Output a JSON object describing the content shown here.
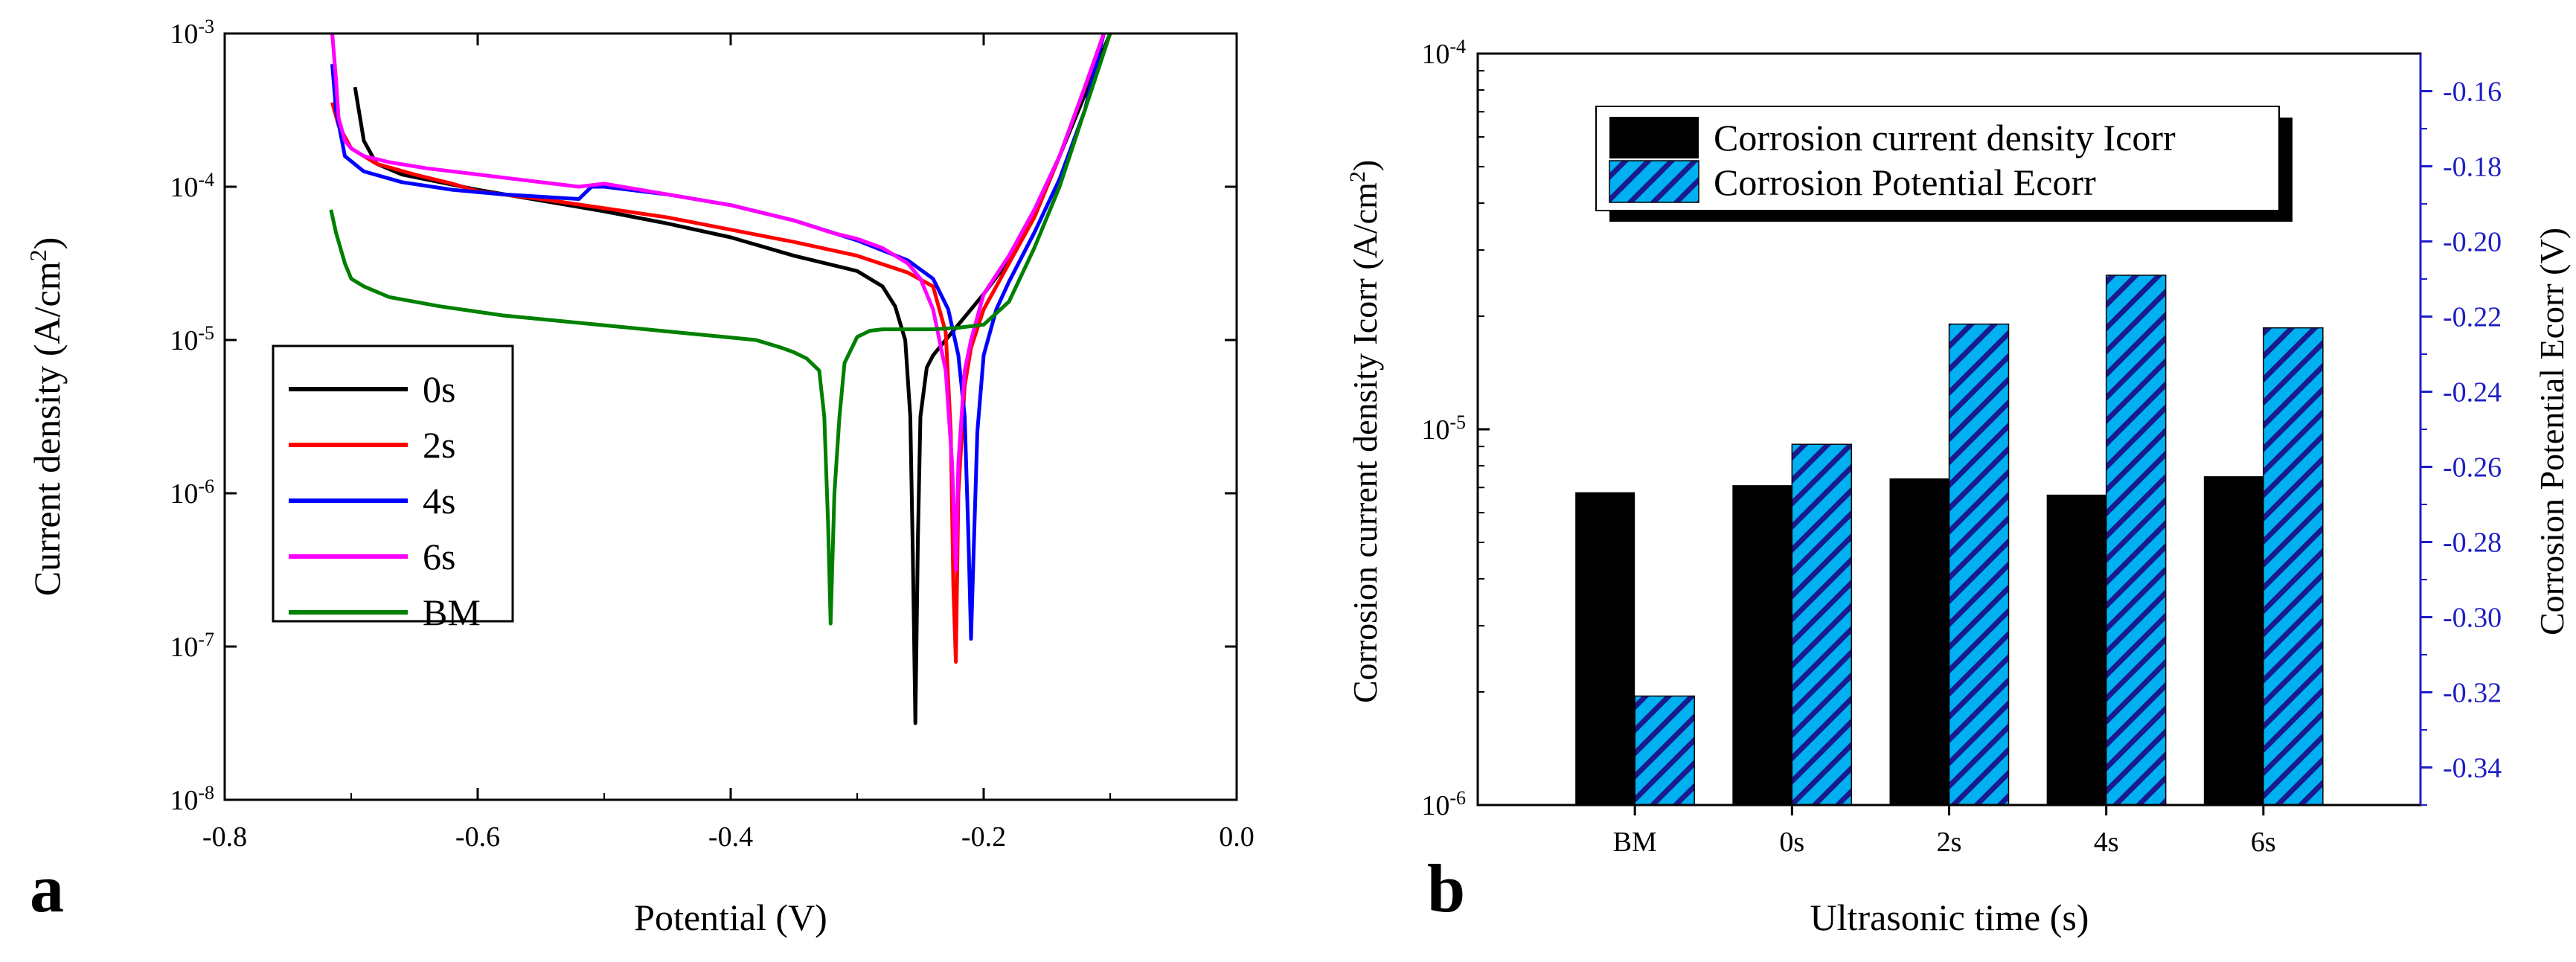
{
  "chart_data": [
    {
      "panel_label": "a",
      "type": "line",
      "xlabel": "Potential (V)",
      "ylabel": "Current density (A/cm",
      "ylabel_sup": "2",
      "ylabel_close": ")",
      "xlim": [
        -0.8,
        0.0
      ],
      "ylim_log10": [
        -8,
        -3
      ],
      "x_ticks": [
        -0.8,
        -0.6,
        -0.4,
        -0.2,
        0.0
      ],
      "x_tick_labels": [
        "-0.8",
        "-0.6",
        "-0.4",
        "-0.2",
        "0.0"
      ],
      "y_tick_exps": [
        "-8",
        "-7",
        "-6",
        "-5",
        "-4",
        "-3"
      ],
      "legend_location": "lower-left",
      "series": [
        {
          "name": "0s",
          "color": "#000000",
          "x": [
            -0.697,
            -0.69,
            -0.68,
            -0.66,
            -0.63,
            -0.6,
            -0.55,
            -0.5,
            -0.45,
            -0.4,
            -0.35,
            -0.3,
            -0.28,
            -0.27,
            -0.262,
            -0.258,
            -0.256,
            -0.254,
            -0.252,
            -0.25,
            -0.245,
            -0.24,
            -0.23,
            -0.22,
            -0.2,
            -0.18,
            -0.16,
            -0.14,
            -0.12,
            -0.1
          ],
          "log_y": [
            -3.35,
            -3.7,
            -3.85,
            -3.92,
            -3.97,
            -4.02,
            -4.09,
            -4.16,
            -4.24,
            -4.33,
            -4.45,
            -4.55,
            -4.65,
            -4.78,
            -5.0,
            -5.5,
            -6.4,
            -7.5,
            -6.3,
            -5.5,
            -5.18,
            -5.1,
            -5.0,
            -4.9,
            -4.7,
            -4.48,
            -4.2,
            -3.8,
            -3.4,
            -3.0
          ]
        },
        {
          "name": "2s",
          "color": "#ff0000",
          "x": [
            -0.715,
            -0.71,
            -0.7,
            -0.68,
            -0.65,
            -0.62,
            -0.6,
            -0.55,
            -0.5,
            -0.45,
            -0.4,
            -0.35,
            -0.3,
            -0.26,
            -0.24,
            -0.23,
            -0.226,
            -0.224,
            -0.222,
            -0.22,
            -0.215,
            -0.21,
            -0.2,
            -0.18,
            -0.16,
            -0.14,
            -0.12,
            -0.105
          ],
          "log_y": [
            -3.45,
            -3.6,
            -3.75,
            -3.85,
            -3.92,
            -3.98,
            -4.03,
            -4.08,
            -4.14,
            -4.2,
            -4.28,
            -4.36,
            -4.45,
            -4.56,
            -4.65,
            -4.95,
            -5.6,
            -6.6,
            -7.1,
            -6.0,
            -5.3,
            -5.05,
            -4.8,
            -4.5,
            -4.2,
            -3.8,
            -3.35,
            -3.0
          ]
        },
        {
          "name": "4s",
          "color": "#0000ff",
          "x": [
            -0.715,
            -0.712,
            -0.705,
            -0.69,
            -0.66,
            -0.62,
            -0.58,
            -0.52,
            -0.51,
            -0.5,
            -0.45,
            -0.4,
            -0.35,
            -0.3,
            -0.26,
            -0.24,
            -0.228,
            -0.22,
            -0.215,
            -0.212,
            -0.21,
            -0.208,
            -0.205,
            -0.2,
            -0.19,
            -0.18,
            -0.16,
            -0.14,
            -0.12,
            -0.105
          ],
          "log_y": [
            -3.2,
            -3.5,
            -3.8,
            -3.9,
            -3.97,
            -4.02,
            -4.05,
            -4.08,
            -4.0,
            -4.0,
            -4.05,
            -4.12,
            -4.22,
            -4.35,
            -4.48,
            -4.6,
            -4.8,
            -5.1,
            -5.5,
            -6.3,
            -6.95,
            -6.4,
            -5.6,
            -5.1,
            -4.8,
            -4.62,
            -4.3,
            -3.95,
            -3.5,
            -3.0
          ]
        },
        {
          "name": "6s",
          "color": "#ff00ff",
          "x": [
            -0.715,
            -0.712,
            -0.71,
            -0.705,
            -0.7,
            -0.69,
            -0.67,
            -0.64,
            -0.6,
            -0.56,
            -0.52,
            -0.5,
            -0.45,
            -0.4,
            -0.35,
            -0.32,
            -0.3,
            -0.28,
            -0.26,
            -0.25,
            -0.24,
            -0.235,
            -0.23,
            -0.225,
            -0.222,
            -0.22,
            -0.215,
            -0.21,
            -0.2,
            -0.18,
            -0.16,
            -0.14,
            -0.12,
            -0.105
          ],
          "log_y": [
            -3.0,
            -3.3,
            -3.55,
            -3.7,
            -3.75,
            -3.8,
            -3.84,
            -3.88,
            -3.92,
            -3.96,
            -4.0,
            -3.98,
            -4.05,
            -4.12,
            -4.22,
            -4.3,
            -4.34,
            -4.4,
            -4.5,
            -4.6,
            -4.8,
            -5.0,
            -5.2,
            -5.8,
            -6.5,
            -5.8,
            -5.2,
            -5.0,
            -4.7,
            -4.45,
            -4.15,
            -3.8,
            -3.35,
            -3.0
          ]
        },
        {
          "name": "BM",
          "color": "#008000",
          "x": [
            -0.716,
            -0.712,
            -0.705,
            -0.7,
            -0.69,
            -0.67,
            -0.63,
            -0.58,
            -0.53,
            -0.48,
            -0.43,
            -0.38,
            -0.36,
            -0.35,
            -0.34,
            -0.33,
            -0.326,
            -0.323,
            -0.321,
            -0.318,
            -0.314,
            -0.31,
            -0.3,
            -0.29,
            -0.28,
            -0.26,
            -0.24,
            -0.22,
            -0.2,
            -0.18,
            -0.16,
            -0.14,
            -0.12,
            -0.1
          ],
          "log_y": [
            -4.15,
            -4.3,
            -4.5,
            -4.6,
            -4.65,
            -4.72,
            -4.78,
            -4.84,
            -4.88,
            -4.92,
            -4.96,
            -5.0,
            -5.05,
            -5.08,
            -5.12,
            -5.2,
            -5.5,
            -6.2,
            -6.85,
            -6.0,
            -5.5,
            -5.15,
            -4.98,
            -4.94,
            -4.93,
            -4.93,
            -4.93,
            -4.92,
            -4.9,
            -4.75,
            -4.4,
            -4.0,
            -3.5,
            -3.0
          ]
        }
      ]
    },
    {
      "panel_label": "b",
      "type": "bar",
      "xlabel": "Ultrasonic time (s)",
      "ylabel_left": "Corrosion current density Icorr (A/cm",
      "ylabel_left_sup": "2",
      "ylabel_left_close": ")",
      "ylabel_right": "Corrosion Potential Ecorr (V)",
      "categories": [
        "BM",
        "0s",
        "2s",
        "4s",
        "6s"
      ],
      "y_left_tick_exps": [
        "-6",
        "-5",
        "-4"
      ],
      "ylim_left_log10": [
        -6,
        -4
      ],
      "ylim_right": [
        -0.35,
        -0.15
      ],
      "y_right_ticks": [
        "-0.16",
        "-0.18",
        "-0.20",
        "-0.22",
        "-0.24",
        "-0.26",
        "-0.28",
        "-0.30",
        "-0.32",
        "-0.34"
      ],
      "legend_location": "top-center",
      "series": [
        {
          "name": "Corrosion current density Icorr",
          "axis": "left",
          "color": "#000000",
          "values": [
            6.8e-06,
            7.1e-06,
            7.4e-06,
            6.7e-06,
            7.5e-06
          ]
        },
        {
          "name": "Corrosion Potential Ecorr",
          "axis": "right",
          "color": "#00b0f0",
          "values": [
            -0.321,
            -0.254,
            -0.222,
            -0.209,
            -0.223
          ]
        }
      ]
    }
  ]
}
